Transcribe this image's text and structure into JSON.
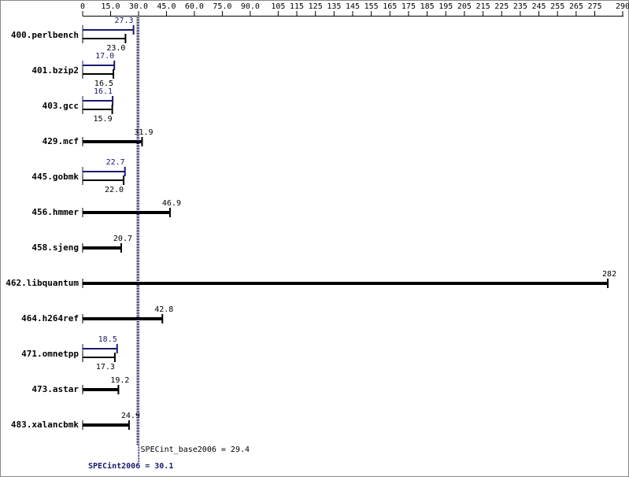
{
  "chart_data": {
    "type": "spec-bar",
    "categories": [
      "400.perlbench",
      "401.bzip2",
      "403.gcc",
      "429.mcf",
      "445.gobmk",
      "456.hmmer",
      "458.sjeng",
      "462.libquantum",
      "464.h264ref",
      "471.omnetpp",
      "473.astar",
      "483.xalancbmk"
    ],
    "series": [
      {
        "color": "#000000",
        "values": [
          23.0,
          16.5,
          15.9,
          31.9,
          22.0,
          46.9,
          20.7,
          282,
          42.8,
          17.3,
          19.2,
          24.9
        ],
        "value_labels": [
          "23.0",
          "16.5",
          "15.9",
          "31.9",
          "22.0",
          "46.9",
          "20.7",
          "282",
          "42.8",
          "17.3",
          "19.2",
          "24.9"
        ]
      },
      {
        "color": "#191970",
        "values": [
          27.3,
          17.0,
          16.1,
          null,
          22.7,
          null,
          null,
          null,
          null,
          18.5,
          null,
          null
        ],
        "value_labels": [
          "27.3",
          "17.0",
          "16.1",
          null,
          "22.7",
          null,
          null,
          null,
          null,
          "18.5",
          null,
          null
        ]
      }
    ],
    "xlim": [
      0,
      290
    ],
    "xticks": [
      0,
      {
        "value": 15,
        "label": "15.0"
      },
      {
        "value": 30,
        "label": "30.0"
      },
      {
        "value": 45,
        "label": "45.0"
      },
      {
        "value": 60,
        "label": "60.0"
      },
      {
        "value": 75,
        "label": "75.0"
      },
      {
        "value": 90,
        "label": "90.0"
      },
      105,
      115,
      125,
      135,
      145,
      155,
      165,
      175,
      185,
      195,
      205,
      215,
      225,
      235,
      245,
      255,
      265,
      275,
      290
    ],
    "reference_lines": [
      {
        "text": "SPECint_base2006 = 29.4",
        "value": 29.4,
        "color": "#000000"
      },
      {
        "text": "SPECint2006 = 30.1",
        "value": 30.1,
        "color": "#191970"
      }
    ]
  }
}
